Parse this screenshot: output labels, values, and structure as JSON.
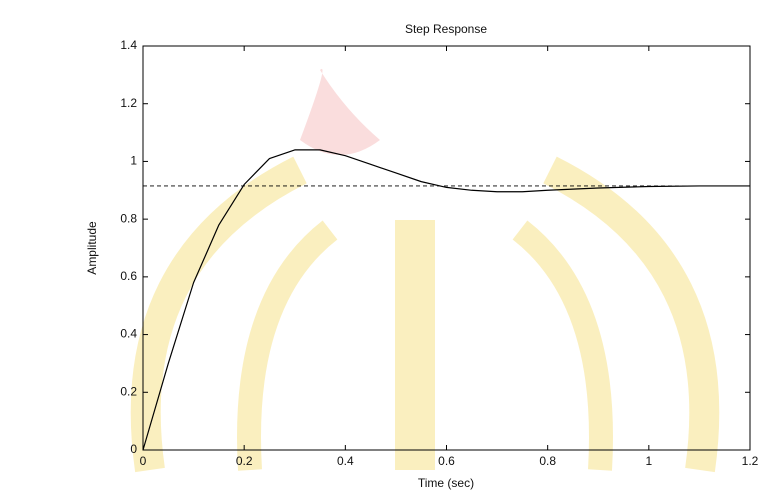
{
  "chart_data": {
    "type": "line",
    "title": "Step Response",
    "x_label": "Time (sec)",
    "y_label": "Amplitude",
    "x": [
      0,
      0.05,
      0.1,
      0.15,
      0.2,
      0.25,
      0.3,
      0.35,
      0.4,
      0.45,
      0.5,
      0.55,
      0.6,
      0.65,
      0.7,
      0.75,
      0.8,
      0.9,
      1.0,
      1.1,
      1.2
    ],
    "values": [
      0,
      0.3,
      0.58,
      0.78,
      0.92,
      1.01,
      1.04,
      1.04,
      1.02,
      0.99,
      0.96,
      0.93,
      0.91,
      0.9,
      0.895,
      0.895,
      0.9,
      0.908,
      0.913,
      0.915,
      0.915
    ],
    "color": "#000000",
    "reference_value": 0.915,
    "reference_style": "dashed",
    "xlim": [
      0,
      1.2
    ],
    "xticks": [
      0,
      0.2,
      0.4,
      0.6,
      0.8,
      1,
      1.2
    ],
    "ylim": [
      0,
      1.4
    ],
    "yticks": [
      0,
      0.2,
      0.4,
      0.6,
      0.8,
      1,
      1.2,
      1.4
    ],
    "grid": false
  }
}
